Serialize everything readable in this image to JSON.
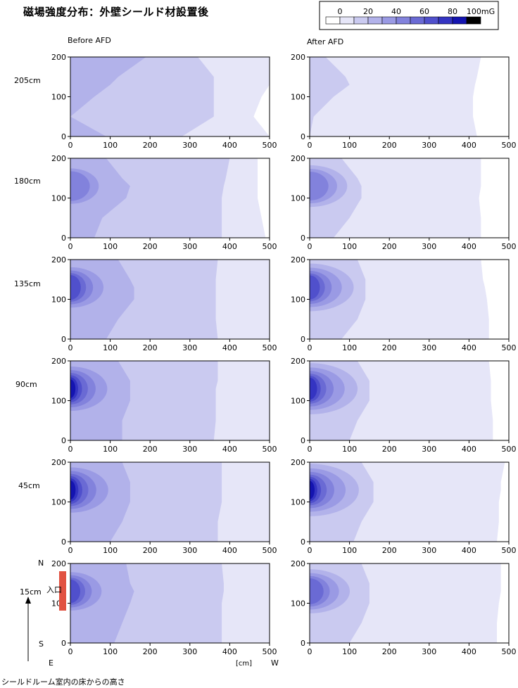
{
  "title": "磁場強度分布：外壁シールド材設置後",
  "footnote": "シールドルーム室内の床からの高さ",
  "legend": {
    "tick_labels": [
      "0",
      "20",
      "40",
      "60",
      "80",
      "100mG"
    ],
    "colors": [
      "#ffffff",
      "#e6e6f8",
      "#cacaf0",
      "#b2b2ea",
      "#9a9ae4",
      "#8282dc",
      "#6a6ad4",
      "#5050cc",
      "#3434c2",
      "#1414b0",
      "#000000"
    ]
  },
  "column_labels": [
    "Before AFD",
    "After AFD"
  ],
  "row_labels": [
    "205cm",
    "180cm",
    "135cm",
    "90cm",
    "45cm",
    "15cm"
  ],
  "axis_annotations": {
    "north": "N",
    "south": "S",
    "east": "E",
    "west": "W",
    "unit": "[cm]",
    "entrance": "入口"
  },
  "chart_data": {
    "type": "heatmap",
    "xlim": [
      0,
      500
    ],
    "ylim": [
      0,
      200
    ],
    "x_ticks": [
      0,
      100,
      200,
      300,
      400,
      500
    ],
    "y_ticks": [
      0,
      100,
      200
    ],
    "colorbar_unit": "mG",
    "colorbar_range": [
      0,
      100
    ],
    "y_sample_points": [
      0,
      50,
      100,
      130,
      150,
      200
    ],
    "panels": [
      {
        "row": "205cm",
        "column": "Before AFD",
        "hot_fraction": 0,
        "boundaries": [
          [
            [
              40,
              90
            ],
            [
              0,
              0
            ],
            [
              0,
              60
            ],
            [
              5,
              100
            ],
            [
              10,
              120
            ],
            [
              5,
              190
            ]
          ],
          [
            [
              240,
              280
            ],
            [
              300,
              360
            ],
            [
              320,
              360
            ],
            [
              330,
              360
            ],
            [
              320,
              360
            ],
            [
              250,
              320
            ]
          ],
          [
            [
              460,
              500
            ],
            [
              450,
              460
            ],
            [
              460,
              480
            ],
            [
              470,
              500
            ],
            [
              480,
              500
            ],
            [
              490,
              500
            ]
          ]
        ]
      },
      {
        "row": "205cm",
        "column": "After AFD",
        "hot_fraction": 0,
        "boundaries": [
          [
            [
              0,
              0
            ],
            [
              0,
              10
            ],
            [
              0,
              60
            ],
            [
              0,
              100
            ],
            [
              0,
              90
            ],
            [
              0,
              40
            ]
          ],
          [
            [
              290,
              420
            ],
            [
              290,
              410
            ],
            [
              285,
              410
            ],
            [
              285,
              415
            ],
            [
              285,
              420
            ],
            [
              290,
              430
            ]
          ]
        ]
      },
      {
        "row": "180cm",
        "column": "Before AFD",
        "hot_fraction": 0.3,
        "boundaries": [
          [
            [
              10,
              60
            ],
            [
              40,
              80
            ],
            [
              70,
              140
            ],
            [
              80,
              150
            ],
            [
              70,
              130
            ],
            [
              40,
              90
            ]
          ],
          [
            [
              230,
              380
            ],
            [
              240,
              380
            ],
            [
              260,
              380
            ],
            [
              265,
              385
            ],
            [
              265,
              390
            ],
            [
              265,
              400
            ]
          ],
          [
            [
              380,
              490
            ],
            [
              380,
              480
            ],
            [
              380,
              470
            ],
            [
              385,
              470
            ],
            [
              390,
              470
            ],
            [
              400,
              470
            ]
          ]
        ]
      },
      {
        "row": "180cm",
        "column": "After AFD",
        "hot_fraction": 0.25,
        "boundaries": [
          [
            [
              20,
              60
            ],
            [
              60,
              100
            ],
            [
              90,
              130
            ],
            [
              100,
              130
            ],
            [
              80,
              120
            ],
            [
              40,
              80
            ]
          ],
          [
            [
              290,
              430
            ],
            [
              290,
              430
            ],
            [
              290,
              425
            ],
            [
              290,
              430
            ],
            [
              295,
              430
            ],
            [
              300,
              430
            ]
          ]
        ]
      },
      {
        "row": "135cm",
        "column": "Before AFD",
        "hot_fraction": 0.55,
        "boundaries": [
          [
            [
              40,
              90
            ],
            [
              70,
              120
            ],
            [
              100,
              160
            ],
            [
              110,
              160
            ],
            [
              100,
              150
            ],
            [
              60,
              120
            ]
          ],
          [
            [
              260,
              370
            ],
            [
              260,
              365
            ],
            [
              260,
              365
            ],
            [
              265,
              365
            ],
            [
              265,
              365
            ],
            [
              265,
              370
            ]
          ],
          [
            [
              370,
              500
            ],
            [
              370,
              500
            ],
            [
              370,
              500
            ],
            [
              370,
              500
            ],
            [
              370,
              500
            ],
            [
              370,
              500
            ]
          ]
        ]
      },
      {
        "row": "135cm",
        "column": "After AFD",
        "hot_fraction": 0.5,
        "boundaries": [
          [
            [
              30,
              80
            ],
            [
              70,
              120
            ],
            [
              110,
              140
            ],
            [
              120,
              140
            ],
            [
              110,
              140
            ],
            [
              60,
              120
            ]
          ],
          [
            [
              300,
              450
            ],
            [
              295,
              450
            ],
            [
              290,
              445
            ],
            [
              290,
              440
            ],
            [
              290,
              435
            ],
            [
              290,
              430
            ]
          ]
        ]
      },
      {
        "row": "90cm",
        "column": "Before AFD",
        "hot_fraction": 0.75,
        "boundaries": [
          [
            [
              30,
              130
            ],
            [
              60,
              130
            ],
            [
              110,
              150
            ],
            [
              120,
              150
            ],
            [
              110,
              150
            ],
            [
              60,
              120
            ]
          ],
          [
            [
              260,
              360
            ],
            [
              260,
              365
            ],
            [
              260,
              365
            ],
            [
              255,
              365
            ],
            [
              250,
              370
            ],
            [
              250,
              370
            ]
          ],
          [
            [
              360,
              500
            ],
            [
              365,
              500
            ],
            [
              365,
              500
            ],
            [
              370,
              500
            ],
            [
              370,
              500
            ],
            [
              370,
              500
            ]
          ]
        ]
      },
      {
        "row": "90cm",
        "column": "After AFD",
        "hot_fraction": 0.65,
        "boundaries": [
          [
            [
              40,
              100
            ],
            [
              70,
              120
            ],
            [
              120,
              150
            ],
            [
              130,
              150
            ],
            [
              120,
              150
            ],
            [
              70,
              120
            ]
          ],
          [
            [
              300,
              460
            ],
            [
              300,
              460
            ],
            [
              300,
              455
            ],
            [
              300,
              455
            ],
            [
              300,
              455
            ],
            [
              300,
              450
            ]
          ]
        ]
      },
      {
        "row": "45cm",
        "column": "Before AFD",
        "hot_fraction": 0.8,
        "boundaries": [
          [
            [
              30,
              100
            ],
            [
              60,
              130
            ],
            [
              110,
              150
            ],
            [
              120,
              150
            ],
            [
              110,
              150
            ],
            [
              60,
              130
            ]
          ],
          [
            [
              260,
              370
            ],
            [
              260,
              370
            ],
            [
              260,
              380
            ],
            [
              265,
              380
            ],
            [
              270,
              380
            ],
            [
              270,
              380
            ]
          ],
          [
            [
              370,
              500
            ],
            [
              370,
              500
            ],
            [
              380,
              500
            ],
            [
              380,
              500
            ],
            [
              380,
              500
            ],
            [
              380,
              500
            ]
          ]
        ]
      },
      {
        "row": "45cm",
        "column": "After AFD",
        "hot_fraction": 0.7,
        "boundaries": [
          [
            [
              40,
              110
            ],
            [
              70,
              130
            ],
            [
              120,
              160
            ],
            [
              130,
              160
            ],
            [
              120,
              160
            ],
            [
              70,
              130
            ]
          ],
          [
            [
              320,
              470
            ],
            [
              320,
              475
            ],
            [
              320,
              475
            ],
            [
              315,
              480
            ],
            [
              310,
              480
            ],
            [
              300,
              490
            ]
          ]
        ]
      },
      {
        "row": "15cm",
        "column": "Before AFD",
        "hot_fraction": 0.45,
        "boundaries": [
          [
            [
              30,
              110
            ],
            [
              60,
              130
            ],
            [
              110,
              150
            ],
            [
              120,
              160
            ],
            [
              120,
              150
            ],
            [
              80,
              140
            ]
          ],
          [
            [
              280,
              380
            ],
            [
              280,
              380
            ],
            [
              290,
              380
            ],
            [
              300,
              385
            ],
            [
              300,
              385
            ],
            [
              300,
              380
            ]
          ],
          [
            [
              380,
              500
            ],
            [
              380,
              500
            ],
            [
              385,
              500
            ],
            [
              390,
              500
            ],
            [
              390,
              500
            ],
            [
              390,
              500
            ]
          ]
        ]
      },
      {
        "row": "15cm",
        "column": "After AFD",
        "hot_fraction": 0.35,
        "boundaries": [
          [
            [
              30,
              100
            ],
            [
              70,
              130
            ],
            [
              110,
              150
            ],
            [
              120,
              150
            ],
            [
              120,
              150
            ],
            [
              80,
              130
            ]
          ],
          [
            [
              320,
              470
            ],
            [
              320,
              470
            ],
            [
              320,
              475
            ],
            [
              320,
              480
            ],
            [
              320,
              480
            ],
            [
              330,
              480
            ]
          ]
        ]
      }
    ]
  }
}
